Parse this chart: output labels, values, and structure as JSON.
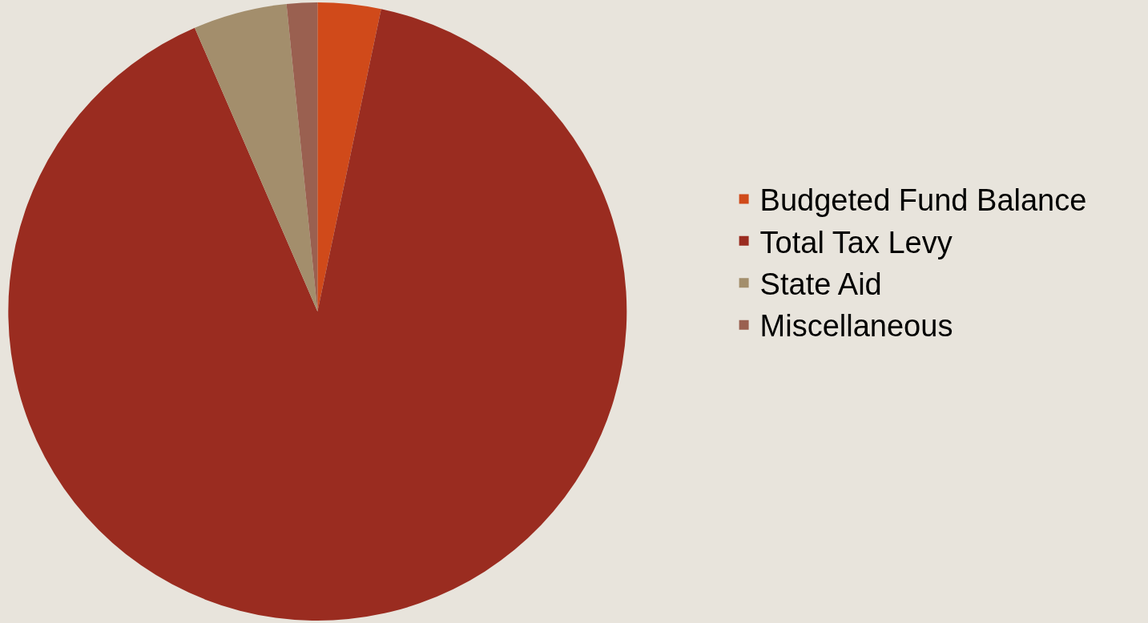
{
  "chart_data": {
    "type": "pie",
    "categories": [
      "Budgeted Fund Balance",
      "Total Tax Levy",
      "State Aid",
      "Miscellaneous"
    ],
    "values": [
      3.3,
      90.2,
      4.9,
      1.6
    ],
    "colors": [
      "#d04a1a",
      "#9a2c20",
      "#a38e6c",
      "#9a6050"
    ],
    "legend": "right"
  }
}
